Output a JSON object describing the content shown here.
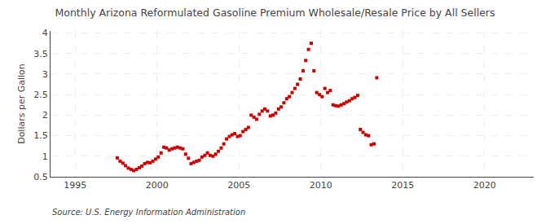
{
  "chart_data": {
    "type": "scatter",
    "title": "Monthly Arizona Reformulated Gasoline Premium Wholesale/Resale Price by All Sellers",
    "y_label": "Dollars per Gallon",
    "annotations": [
      "Source: U.S. Energy Information Administration"
    ],
    "xlim": [
      1993.5,
      2023.0
    ],
    "ylim": [
      0.5,
      4.05
    ],
    "xticks": [
      1995,
      2000,
      2005,
      2010,
      2015,
      2020
    ],
    "yticks": [
      0.5,
      1.0,
      1.5,
      2.0,
      2.5,
      3.0,
      3.5,
      4.0
    ],
    "color": "#cc0000",
    "marker": "square",
    "grid": true,
    "x": [
      1997.58,
      1997.75,
      1997.92,
      1998.08,
      1998.25,
      1998.42,
      1998.58,
      1998.75,
      1998.92,
      1999.08,
      1999.25,
      1999.42,
      1999.58,
      1999.75,
      1999.92,
      2000.08,
      2000.25,
      2000.42,
      2000.58,
      2000.75,
      2000.92,
      2001.08,
      2001.25,
      2001.42,
      2001.58,
      2001.75,
      2001.92,
      2002.08,
      2002.25,
      2002.42,
      2002.58,
      2002.75,
      2002.92,
      2003.08,
      2003.25,
      2003.42,
      2003.58,
      2003.75,
      2003.92,
      2004.08,
      2004.25,
      2004.42,
      2004.58,
      2004.75,
      2004.92,
      2005.08,
      2005.25,
      2005.42,
      2005.58,
      2005.75,
      2005.92,
      2006.08,
      2006.25,
      2006.42,
      2006.58,
      2006.75,
      2006.92,
      2007.08,
      2007.25,
      2007.42,
      2007.58,
      2007.75,
      2007.92,
      2008.08,
      2008.25,
      2008.42,
      2008.58,
      2008.75,
      2008.92,
      2009.08,
      2009.25,
      2009.42,
      2009.58,
      2009.75,
      2009.92,
      2010.08,
      2010.25,
      2010.42,
      2010.58,
      2010.75,
      2010.92,
      2011.08,
      2011.25,
      2011.42,
      2011.58,
      2011.75,
      2011.92,
      2012.08,
      2012.25,
      2012.42,
      2012.58,
      2012.75,
      2012.92,
      2013.08,
      2013.25,
      2013.42
    ],
    "values": [
      0.96,
      0.88,
      0.83,
      0.77,
      0.71,
      0.68,
      0.65,
      0.68,
      0.72,
      0.76,
      0.82,
      0.85,
      0.84,
      0.88,
      0.93,
      0.98,
      1.08,
      1.22,
      1.2,
      1.15,
      1.18,
      1.2,
      1.22,
      1.2,
      1.18,
      1.05,
      0.95,
      0.82,
      0.85,
      0.88,
      0.9,
      0.98,
      1.02,
      1.08,
      1.02,
      1.0,
      1.05,
      1.12,
      1.2,
      1.3,
      1.42,
      1.48,
      1.52,
      1.55,
      1.48,
      1.5,
      1.6,
      1.65,
      1.7,
      2.0,
      1.95,
      1.9,
      2.02,
      2.1,
      2.15,
      2.1,
      1.98,
      2.0,
      2.05,
      2.15,
      2.2,
      2.3,
      2.4,
      2.45,
      2.55,
      2.65,
      2.75,
      2.88,
      3.08,
      3.33,
      3.6,
      3.75,
      3.08,
      2.55,
      2.5,
      2.45,
      2.65,
      2.55,
      2.6,
      2.25,
      2.23,
      2.22,
      2.25,
      2.28,
      2.32,
      2.35,
      2.4,
      2.43,
      2.48,
      1.65,
      1.58,
      1.52,
      1.5,
      1.28,
      1.3,
      2.91
    ]
  }
}
